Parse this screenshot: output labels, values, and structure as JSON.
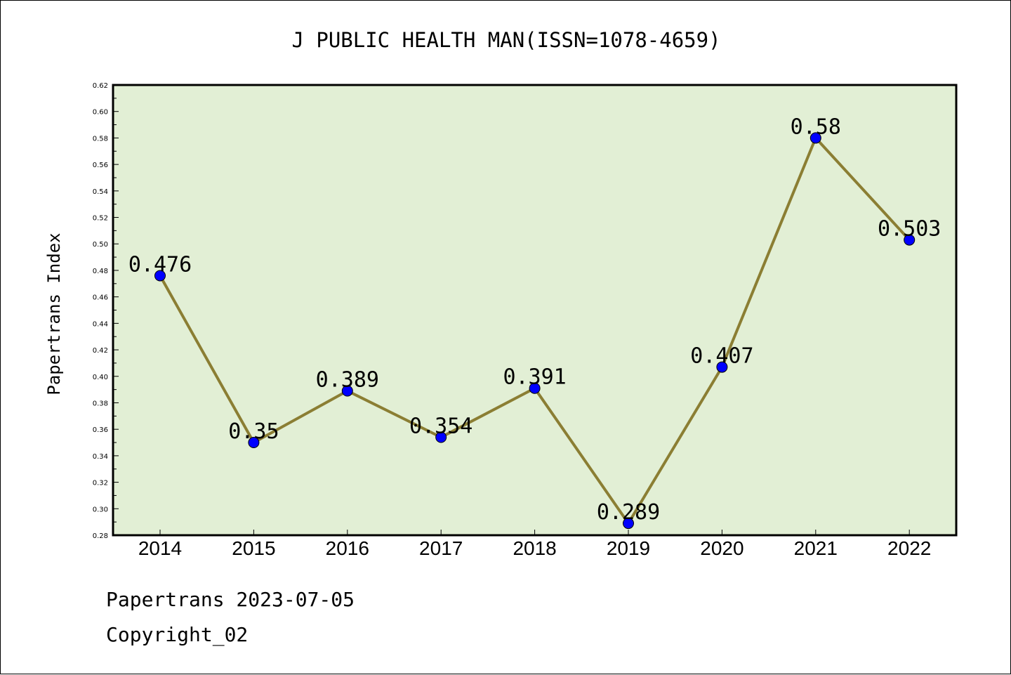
{
  "chart_data": {
    "type": "line",
    "title": "J PUBLIC HEALTH MAN(ISSN=1078-4659)",
    "xlabel": "",
    "ylabel": "Papertrans Index",
    "categories": [
      "2014",
      "2015",
      "2016",
      "2017",
      "2018",
      "2019",
      "2020",
      "2021",
      "2022"
    ],
    "series": [
      {
        "values": [
          0.476,
          0.35,
          0.389,
          0.354,
          0.391,
          0.289,
          0.407,
          0.58,
          0.503
        ],
        "data_labels": [
          "0.476",
          "0.35",
          "0.389",
          "0.354",
          "0.391",
          "0.289",
          "0.407",
          "0.58",
          "0.503"
        ]
      }
    ],
    "ylim": [
      0.28,
      0.62
    ],
    "yticks": [
      "0.28",
      "0.30",
      "0.32",
      "0.34",
      "0.36",
      "0.38",
      "0.40",
      "0.42",
      "0.44",
      "0.46",
      "0.48",
      "0.50",
      "0.52",
      "0.54",
      "0.56",
      "0.58",
      "0.60",
      "0.62"
    ],
    "grid": false,
    "legend": "none",
    "colors": {
      "plot_background": "#e2efd5",
      "line": "#8b7e33",
      "marker": "#0000ff"
    }
  },
  "footer": {
    "source": "Papertrans 2023-07-05",
    "copyright": "Copyright_02"
  }
}
